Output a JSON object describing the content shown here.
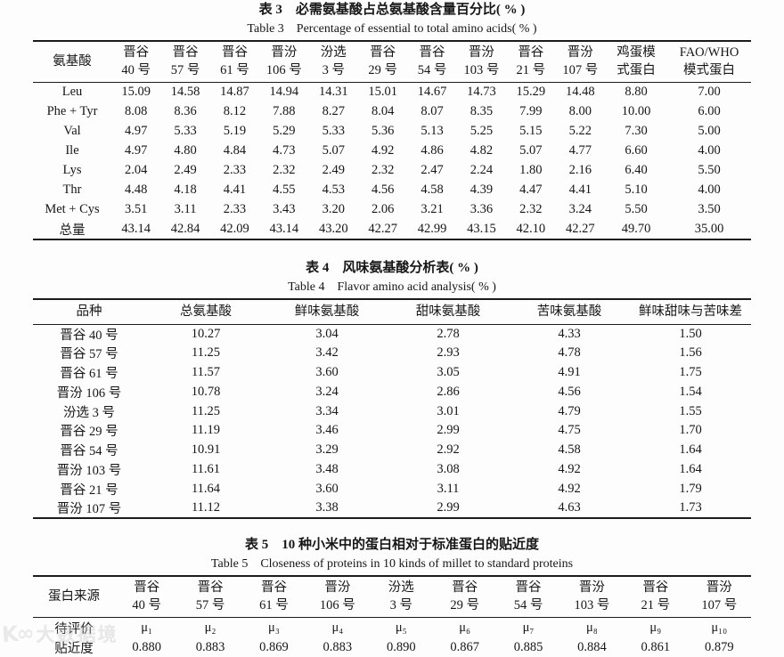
{
  "page": {
    "background": "#fdfdfd",
    "text_color": "#161616",
    "rule_color": "#1b1b1b"
  },
  "tables": [
    {
      "caption_zh": "表 3　必需氨基酸占总氨基酸含量百分比( % )",
      "caption_en": "Table 3　Percentage of essential to total amino acids( % )",
      "headers": [
        "氨基酸",
        "晋谷\n40 号",
        "晋谷\n57 号",
        "晋谷\n61 号",
        "晋汾\n106 号",
        "汾选\n3 号",
        "晋谷\n29 号",
        "晋谷\n54 号",
        "晋汾\n103 号",
        "晋谷\n21 号",
        "晋汾\n107 号",
        "鸡蛋模\n式蛋白",
        "FAO/WHO\n模式蛋白"
      ],
      "rows": [
        [
          "Leu",
          "15.09",
          "14.58",
          "14.87",
          "14.94",
          "14.31",
          "15.01",
          "14.67",
          "14.73",
          "15.29",
          "14.48",
          "8.80",
          "7.00"
        ],
        [
          "Phe + Tyr",
          "8.08",
          "8.36",
          "8.12",
          "7.88",
          "8.27",
          "8.04",
          "8.07",
          "8.35",
          "7.99",
          "8.00",
          "10.00",
          "6.00"
        ],
        [
          "Val",
          "4.97",
          "5.33",
          "5.19",
          "5.29",
          "5.33",
          "5.36",
          "5.13",
          "5.25",
          "5.15",
          "5.22",
          "7.30",
          "5.00"
        ],
        [
          "Ile",
          "4.97",
          "4.80",
          "4.84",
          "4.73",
          "5.07",
          "4.92",
          "4.86",
          "4.82",
          "5.07",
          "4.77",
          "6.60",
          "4.00"
        ],
        [
          "Lys",
          "2.04",
          "2.49",
          "2.33",
          "2.32",
          "2.49",
          "2.32",
          "2.47",
          "2.24",
          "1.80",
          "2.16",
          "6.40",
          "5.50"
        ],
        [
          "Thr",
          "4.48",
          "4.18",
          "4.41",
          "4.55",
          "4.53",
          "4.56",
          "4.58",
          "4.39",
          "4.47",
          "4.41",
          "5.10",
          "4.00"
        ],
        [
          "Met + Cys",
          "3.51",
          "3.11",
          "2.33",
          "3.43",
          "3.20",
          "2.06",
          "3.21",
          "3.36",
          "2.32",
          "3.24",
          "5.50",
          "3.50"
        ],
        [
          "总量",
          "43.14",
          "42.84",
          "42.09",
          "43.14",
          "43.20",
          "42.27",
          "42.99",
          "43.15",
          "42.10",
          "42.27",
          "49.70",
          "35.00"
        ]
      ]
    },
    {
      "caption_zh": "表 4　风味氨基酸分析表( % )",
      "caption_en": "Table 4　Flavor amino acid analysis( % )",
      "headers": [
        "品种",
        "总氨基酸",
        "鲜味氨基酸",
        "甜味氨基酸",
        "苦味氨基酸",
        "鲜味甜味与苦味差"
      ],
      "rows": [
        [
          "晋谷 40 号",
          "10.27",
          "3.04",
          "2.78",
          "4.33",
          "1.50"
        ],
        [
          "晋谷 57 号",
          "11.25",
          "3.42",
          "2.93",
          "4.78",
          "1.56"
        ],
        [
          "晋谷 61 号",
          "11.57",
          "3.60",
          "3.05",
          "4.91",
          "1.75"
        ],
        [
          "晋汾 106 号",
          "10.78",
          "3.24",
          "2.86",
          "4.56",
          "1.54"
        ],
        [
          "汾选 3 号",
          "11.25",
          "3.34",
          "3.01",
          "4.79",
          "1.55"
        ],
        [
          "晋谷 29 号",
          "11.19",
          "3.46",
          "2.99",
          "4.75",
          "1.70"
        ],
        [
          "晋谷 54 号",
          "10.91",
          "3.29",
          "2.92",
          "4.58",
          "1.64"
        ],
        [
          "晋汾 103 号",
          "11.61",
          "3.48",
          "3.08",
          "4.92",
          "1.64"
        ],
        [
          "晋谷 21 号",
          "11.64",
          "3.60",
          "3.11",
          "4.92",
          "1.79"
        ],
        [
          "晋汾 107 号",
          "11.12",
          "3.38",
          "2.99",
          "4.63",
          "1.73"
        ]
      ]
    },
    {
      "caption_zh": "表 5　10 种小米中的蛋白相对于标准蛋白的贴近度",
      "caption_en": "Table 5　Closeness of proteins in 10 kinds of millet to standard proteins",
      "headers": [
        "蛋白来源",
        "晋谷\n40 号",
        "晋谷\n57 号",
        "晋谷\n61 号",
        "晋汾\n106 号",
        "汾选\n3 号",
        "晋谷\n29 号",
        "晋谷\n54 号",
        "晋汾\n103 号",
        "晋谷\n21 号",
        "晋汾\n107 号"
      ],
      "rows": [
        [
          "待评价",
          "μ₁",
          "μ₂",
          "μ₃",
          "μ₄",
          "μ₅",
          "μ₆",
          "μ₇",
          "μ₈",
          "μ₉",
          "μ₁₀"
        ],
        [
          "贴近度",
          "0.880",
          "0.883",
          "0.869",
          "0.883",
          "0.890",
          "0.867",
          "0.885",
          "0.884",
          "0.861",
          "0.879"
        ]
      ]
    }
  ],
  "watermark": {
    "logo_glyph": "K∞",
    "text": "大数据境",
    "color": "#c4c4c4"
  }
}
